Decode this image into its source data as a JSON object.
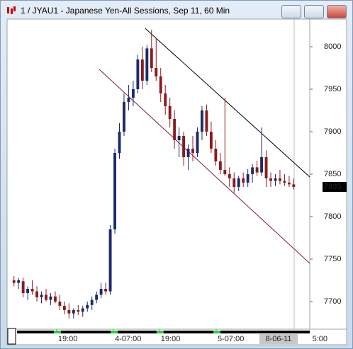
{
  "chart_data": {
    "type": "candlestick",
    "title": "1 / JYAU1 - Japanese Yen-All Sessions, Sep 11, 60 Min",
    "open": [
      7725,
      7722,
      7724,
      7710,
      7715,
      7712,
      7705,
      7708,
      7702,
      7706,
      7700,
      7695,
      7690,
      7686,
      7690,
      7688,
      7692,
      7696,
      7702,
      7708,
      7715,
      7712,
      7785,
      7875,
      7900,
      7935,
      7940,
      7950,
      7985,
      7960,
      7998,
      7975,
      7965,
      7945,
      7930,
      7915,
      7890,
      7895,
      7870,
      7880,
      7875,
      7900,
      7925,
      7900,
      7880,
      7865,
      7855,
      7850,
      7845,
      7835,
      7845,
      7840,
      7850,
      7858,
      7852,
      7870,
      7845,
      7842,
      7845,
      7842,
      7840,
      7838
    ],
    "high": [
      7730,
      7728,
      7728,
      7718,
      7725,
      7718,
      7712,
      7715,
      7710,
      7712,
      7708,
      7700,
      7698,
      7692,
      7696,
      7695,
      7700,
      7706,
      7712,
      7722,
      7722,
      7790,
      7880,
      7910,
      7945,
      7955,
      7960,
      7990,
      8000,
      8002,
      8020,
      8010,
      7975,
      7955,
      7940,
      7925,
      7905,
      7900,
      7885,
      7895,
      7905,
      7930,
      7932,
      7912,
      7890,
      7875,
      7940,
      7858,
      7852,
      7848,
      7852,
      7856,
      7862,
      7866,
      7905,
      7878,
      7852,
      7850,
      7855,
      7850,
      7848,
      7845
    ],
    "low": [
      7718,
      7715,
      7705,
      7702,
      7708,
      7700,
      7698,
      7700,
      7696,
      7698,
      7690,
      7685,
      7680,
      7680,
      7684,
      7682,
      7688,
      7690,
      7698,
      7704,
      7708,
      7708,
      7780,
      7868,
      7895,
      7925,
      7930,
      7945,
      7950,
      7955,
      7970,
      7960,
      7935,
      7920,
      7905,
      7880,
      7870,
      7860,
      7855,
      7865,
      7870,
      7890,
      7895,
      7875,
      7860,
      7850,
      7848,
      7835,
      7828,
      7830,
      7835,
      7835,
      7840,
      7848,
      7848,
      7835,
      7835,
      7836,
      7838,
      7836,
      7835,
      7832
    ],
    "close": [
      7722,
      7725,
      7710,
      7715,
      7712,
      7705,
      7708,
      7702,
      7706,
      7700,
      7695,
      7690,
      7686,
      7690,
      7688,
      7692,
      7696,
      7702,
      7708,
      7715,
      7712,
      7785,
      7875,
      7900,
      7935,
      7940,
      7950,
      7985,
      7960,
      7998,
      7975,
      7965,
      7945,
      7930,
      7915,
      7890,
      7895,
      7870,
      7880,
      7875,
      7900,
      7925,
      7900,
      7880,
      7865,
      7855,
      7850,
      7845,
      7835,
      7845,
      7840,
      7850,
      7858,
      7852,
      7870,
      7845,
      7842,
      7845,
      7842,
      7840,
      7838,
      7835
    ],
    "up_color": "#1c2a6b",
    "down_color": "#8a1c1c",
    "xlim": [
      -1.5,
      64.5
    ],
    "ylim": [
      7667.5,
      8032.5
    ],
    "yticks": [
      7700,
      7750,
      7800,
      7850,
      7900,
      7950,
      8000
    ],
    "xticks": [
      {
        "value": 9.3,
        "label": "19:00"
      },
      {
        "value": 21.7,
        "label": "4-07:00"
      },
      {
        "value": 31.7,
        "label": "19:00"
      },
      {
        "value": 44.1,
        "label": "5-07:00"
      }
    ],
    "date_label": "8-06-11",
    "time_label": "5:00",
    "last_price": 7835,
    "trendlines": [
      {
        "color": "#000000",
        "x": [
          28.6,
          64.5
        ],
        "y": [
          8021.7,
          7846.7
        ]
      },
      {
        "color": "#7a1a3a",
        "x": [
          18.6,
          64.5
        ],
        "y": [
          7973.3,
          7745
        ]
      }
    ]
  }
}
